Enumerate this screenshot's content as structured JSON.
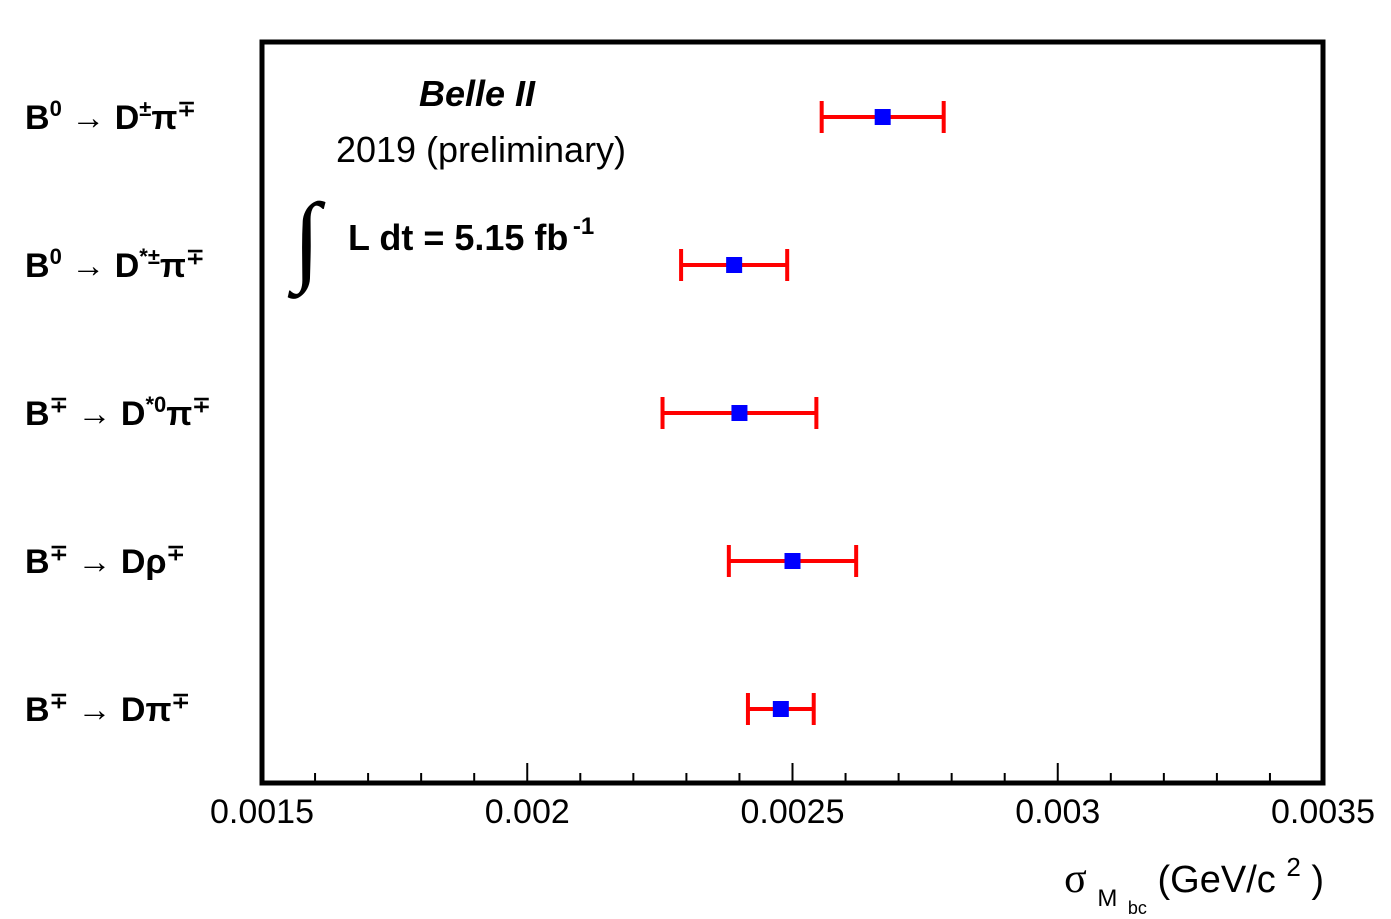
{
  "chart_data": {
    "type": "errorbar",
    "categories": [
      [
        "B",
        "0",
        " → D",
        "±",
        "π",
        "∓"
      ],
      [
        "B",
        "0",
        " → D",
        "*±",
        "π",
        "∓"
      ],
      [
        "B",
        "∓",
        " → D",
        "*0",
        "π",
        "∓"
      ],
      [
        "B",
        "∓",
        " → Dρ",
        "∓"
      ],
      [
        "B",
        "∓",
        " → Dπ",
        "∓"
      ]
    ],
    "values": [
      0.00267,
      0.00239,
      0.0024,
      0.0025,
      0.002478
    ],
    "errors": [
      0.000115,
      0.0001,
      0.000145,
      0.00012,
      6.2e-05
    ],
    "marker_color": "#0000ff",
    "error_color": "#ff0000",
    "annotations": [
      "Belle II",
      "2019 (preliminary)",
      [
        "∫",
        "L dt = 5.15 fb",
        "-1"
      ]
    ],
    "xlabel": [
      "σ",
      "M",
      "bc",
      " (GeV/c",
      "2",
      ")"
    ],
    "xlim": [
      0.0015,
      0.0035
    ],
    "xticks": [
      0.0015,
      0.002,
      0.0025,
      0.003,
      0.0035
    ],
    "xminorticks": [
      0.0016,
      0.0017,
      0.0018,
      0.0019,
      0.0021,
      0.0022,
      0.0023,
      0.0024,
      0.0026,
      0.0027,
      0.0028,
      0.0029,
      0.0031,
      0.0032,
      0.0033,
      0.0034
    ]
  }
}
